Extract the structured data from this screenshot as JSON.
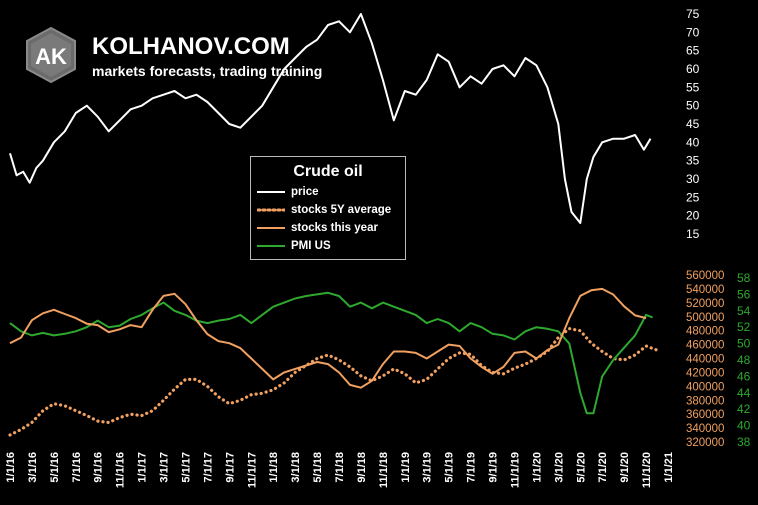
{
  "brand": {
    "logo_text": "AK",
    "name": "KOLHANOV.COM",
    "tagline": "markets forecasts, trading training"
  },
  "colors": {
    "background": "#000000",
    "price": "#ffffff",
    "stocks_avg": "#f0a060",
    "stocks_year": "#f0a060",
    "pmi": "#2ea82e",
    "axis_price_text": "#ffffff",
    "axis_stocks_text": "#f0a060",
    "axis_pmi_text": "#2ea82e"
  },
  "chart_data": {
    "type": "line",
    "title": "Crude oil",
    "x_ticks": [
      "1/1/16",
      "3/1/16",
      "5/1/16",
      "7/1/16",
      "9/1/16",
      "11/1/16",
      "1/1/17",
      "3/1/17",
      "5/1/17",
      "7/1/17",
      "9/1/17",
      "11/1/17",
      "1/1/18",
      "3/1/18",
      "5/1/18",
      "7/1/18",
      "9/1/18",
      "11/1/18",
      "1/1/19",
      "3/1/19",
      "5/1/19",
      "7/1/19",
      "9/1/19",
      "11/1/19",
      "1/1/20",
      "3/1/20",
      "5/1/20",
      "7/1/20",
      "9/1/20",
      "11/1/20",
      "1/1/21"
    ],
    "axes": {
      "price": {
        "ticks": [
          15,
          20,
          25,
          30,
          35,
          40,
          45,
          50,
          55,
          60,
          65,
          70,
          75
        ],
        "range": [
          15,
          75
        ]
      },
      "stocks": {
        "ticks": [
          320000,
          340000,
          360000,
          380000,
          400000,
          420000,
          440000,
          460000,
          480000,
          500000,
          520000,
          540000,
          560000
        ],
        "range": [
          320000,
          560000
        ]
      },
      "pmi": {
        "ticks": [
          38,
          40,
          42,
          44,
          46,
          48,
          50,
          52,
          54,
          56,
          58
        ],
        "range": [
          38,
          58
        ]
      }
    },
    "series": [
      {
        "name": "price",
        "style": "solid",
        "axis": "price",
        "x": [
          0,
          0.3,
          0.6,
          0.9,
          1.2,
          1.5,
          2,
          2.5,
          3,
          3.5,
          4,
          4.5,
          5,
          5.5,
          6,
          6.5,
          7,
          7.5,
          8,
          8.5,
          9,
          9.5,
          10,
          10.5,
          11,
          11.5,
          12,
          12.5,
          13,
          13.5,
          14,
          14.5,
          15,
          15.5,
          16,
          16.5,
          17,
          17.5,
          18,
          18.5,
          19,
          19.5,
          20,
          20.5,
          21,
          21.5,
          22,
          22.5,
          23,
          23.5,
          24,
          24.5,
          25,
          25.3,
          25.6,
          26,
          26.3,
          26.6,
          27,
          27.5,
          28,
          28.5,
          28.9,
          29.2
        ],
        "y": [
          37,
          31,
          32,
          29,
          33,
          35,
          40,
          43,
          48,
          50,
          47,
          43,
          46,
          49,
          50,
          52,
          53,
          54,
          52,
          53,
          51,
          48,
          45,
          44,
          47,
          50,
          55,
          60,
          63,
          66,
          68,
          72,
          73,
          70,
          75,
          67,
          57,
          46,
          54,
          53,
          57,
          64,
          62,
          55,
          58,
          56,
          60,
          61,
          58,
          63,
          61,
          55,
          45,
          30,
          21,
          18,
          30,
          36,
          40,
          41,
          41,
          42,
          38,
          41
        ]
      },
      {
        "name": "stocks 5Y average",
        "style": "dotted",
        "axis": "stocks",
        "x": [
          0,
          0.5,
          1,
          1.5,
          2,
          2.5,
          3,
          3.5,
          4,
          4.5,
          5,
          5.5,
          6,
          6.5,
          7,
          7.5,
          8,
          8.5,
          9,
          9.5,
          10,
          10.5,
          11,
          11.5,
          12,
          12.5,
          13,
          13.5,
          14,
          14.5,
          15,
          15.5,
          16,
          16.5,
          17,
          17.5,
          18,
          18.5,
          19,
          19.5,
          20,
          20.5,
          21,
          21.5,
          22,
          22.5,
          23,
          23.5,
          24,
          24.5,
          25,
          25.5,
          26,
          26.5,
          27,
          27.5,
          28,
          28.5,
          29,
          29.5
        ],
        "y": [
          330000,
          338000,
          348000,
          365000,
          375000,
          372000,
          365000,
          358000,
          350000,
          348000,
          355000,
          360000,
          358000,
          365000,
          380000,
          396000,
          410000,
          410000,
          400000,
          385000,
          375000,
          380000,
          388000,
          390000,
          395000,
          405000,
          420000,
          430000,
          440000,
          445000,
          438000,
          428000,
          415000,
          408000,
          415000,
          425000,
          418000,
          405000,
          410000,
          425000,
          440000,
          448000,
          446000,
          430000,
          420000,
          418000,
          426000,
          432000,
          440000,
          450000,
          470000,
          483000,
          480000,
          462000,
          450000,
          440000,
          438000,
          445000,
          458000,
          452000
        ]
      },
      {
        "name": "stocks this year",
        "style": "solid",
        "axis": "stocks",
        "x": [
          0,
          0.5,
          1,
          1.5,
          2,
          2.5,
          3,
          3.5,
          4,
          4.5,
          5,
          5.5,
          6,
          6.5,
          7,
          7.5,
          8,
          8.5,
          9,
          9.5,
          10,
          10.5,
          11,
          11.5,
          12,
          12.5,
          13,
          13.5,
          14,
          14.5,
          15,
          15.5,
          16,
          16.5,
          17,
          17.5,
          18,
          18.5,
          19,
          19.5,
          20,
          20.5,
          21,
          21.5,
          22,
          22.5,
          23,
          23.5,
          24,
          24.5,
          25,
          25.5,
          26,
          26.5,
          27,
          27.5,
          28,
          28.5,
          29
        ],
        "y": [
          462000,
          470000,
          495000,
          505000,
          510000,
          504000,
          498000,
          490000,
          488000,
          478000,
          482000,
          488000,
          485000,
          510000,
          530000,
          533000,
          518000,
          495000,
          475000,
          465000,
          462000,
          455000,
          440000,
          425000,
          410000,
          420000,
          425000,
          430000,
          435000,
          432000,
          420000,
          402000,
          398000,
          408000,
          432000,
          450000,
          450000,
          448000,
          440000,
          450000,
          460000,
          458000,
          440000,
          428000,
          418000,
          428000,
          448000,
          450000,
          440000,
          452000,
          460000,
          498000,
          530000,
          538000,
          540000,
          532000,
          515000,
          502000,
          498000
        ]
      },
      {
        "name": "PMI US",
        "style": "solid",
        "axis": "pmi",
        "x": [
          0,
          0.5,
          1,
          1.5,
          2,
          2.5,
          3,
          3.5,
          4,
          4.5,
          5,
          5.5,
          6,
          6.5,
          7,
          7.5,
          8,
          8.5,
          9,
          9.5,
          10,
          10.5,
          11,
          11.5,
          12,
          12.5,
          13,
          13.5,
          14,
          14.5,
          15,
          15.5,
          16,
          16.5,
          17,
          17.5,
          18,
          18.5,
          19,
          19.5,
          20,
          20.5,
          21,
          21.5,
          22,
          22.5,
          23,
          23.5,
          24,
          24.5,
          25,
          25.5,
          26,
          26.3,
          26.6,
          27,
          27.5,
          28,
          28.5,
          29,
          29.3
        ],
        "y": [
          52.5,
          51.5,
          51,
          51.3,
          51,
          51.2,
          51.5,
          52,
          52.8,
          52,
          52.2,
          53,
          53.5,
          54.3,
          55,
          54,
          53.5,
          52.8,
          52.5,
          52.8,
          53,
          53.5,
          52.5,
          53.5,
          54.5,
          55,
          55.5,
          55.8,
          56,
          56.2,
          55.8,
          54.5,
          55,
          54.3,
          55,
          54.5,
          54,
          53.5,
          52.5,
          53,
          52.5,
          51.5,
          52.5,
          52,
          51.2,
          51,
          50.5,
          51.5,
          52,
          51.8,
          51.5,
          50,
          44,
          41.5,
          41.5,
          46,
          48,
          49.5,
          51,
          53.5,
          53.2
        ]
      }
    ],
    "legend": {
      "position": "center",
      "entries": [
        "price",
        "stocks 5Y average",
        "stocks this year",
        "PMI US"
      ]
    },
    "grid": false
  }
}
